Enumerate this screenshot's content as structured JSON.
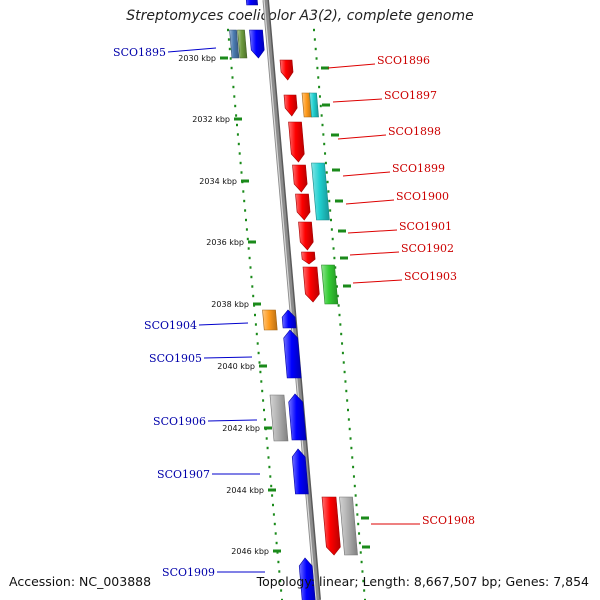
{
  "title": "Streptomyces coelicolor A3(2), complete genome",
  "footer": {
    "accession": "Accession: NC_003888",
    "summary": "Topology: linear; Length: 8,667,507 bp; Genes: 7,854"
  },
  "colors": {
    "forward_gene": "#ff0000",
    "reverse_gene": "#0000ff",
    "backbone": "#8c8c8c",
    "dots": "#1a8a1a",
    "cyan": "#20d0d0",
    "orange": "#ff9a1a",
    "green": "#33cc33",
    "gray": "#b0b0b0",
    "olive": "#6c9a3c",
    "steel": "#4a7ab0"
  },
  "kbp_ticks": [
    "2030 kbp",
    "2032 kbp",
    "2034 kbp",
    "2036 kbp",
    "2038 kbp",
    "2040 kbp",
    "2042 kbp",
    "2044 kbp",
    "2046 kbp"
  ],
  "right_labels": [
    "SCO1896",
    "SCO1897",
    "SCO1898",
    "SCO1899",
    "SCO1900",
    "SCO1901",
    "SCO1902",
    "SCO1903",
    "SCO1908"
  ],
  "left_labels": [
    "SCO1895",
    "SCO1904",
    "SCO1905",
    "SCO1906",
    "SCO1907",
    "SCO1909"
  ]
}
